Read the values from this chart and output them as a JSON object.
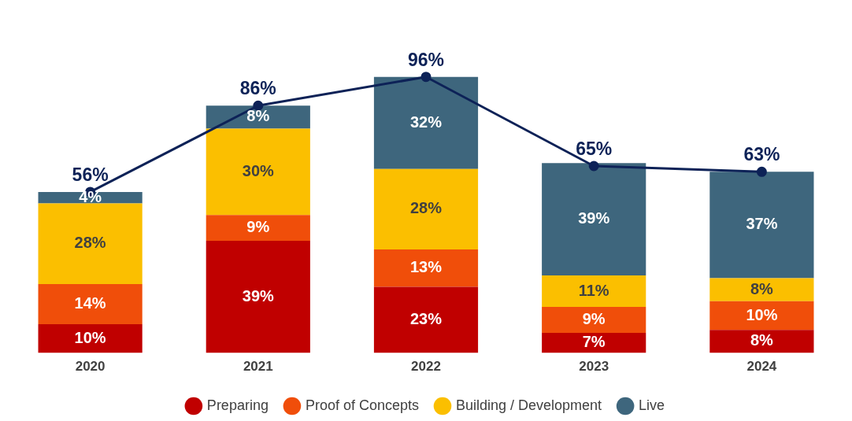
{
  "chart_data": {
    "type": "bar",
    "stacked": true,
    "categories": [
      "2020",
      "2021",
      "2022",
      "2023",
      "2024"
    ],
    "series": [
      {
        "name": "Preparing",
        "color": "#c00000",
        "values": [
          10,
          39,
          23,
          7,
          8
        ],
        "value_labels": [
          "10%",
          "39%",
          "23%",
          "7%",
          "8%"
        ]
      },
      {
        "name": "Proof of Concepts",
        "color": "#f04e0a",
        "values": [
          14,
          9,
          13,
          9,
          10
        ],
        "value_labels": [
          "14%",
          "9%",
          "13%",
          "9%",
          "10%"
        ]
      },
      {
        "name": "Building / Development",
        "color": "#fbbf00",
        "values": [
          28,
          30,
          28,
          11,
          8
        ],
        "value_labels": [
          "28%",
          "30%",
          "28%",
          "11%",
          "8%"
        ]
      },
      {
        "name": "Live",
        "color": "#3e667d",
        "values": [
          4,
          8,
          32,
          39,
          37
        ],
        "value_labels": [
          "4%",
          "8%",
          "32%",
          "39%",
          "37%"
        ]
      },
      {
        "type": "line",
        "color": "#0d2257",
        "values": [
          56,
          86,
          96,
          65,
          63
        ],
        "value_labels": [
          "56%",
          "86%",
          "96%",
          "65%",
          "63%"
        ]
      }
    ],
    "legend": "bottom",
    "marker": "circle",
    "grid": false,
    "tick_labels": "x"
  }
}
